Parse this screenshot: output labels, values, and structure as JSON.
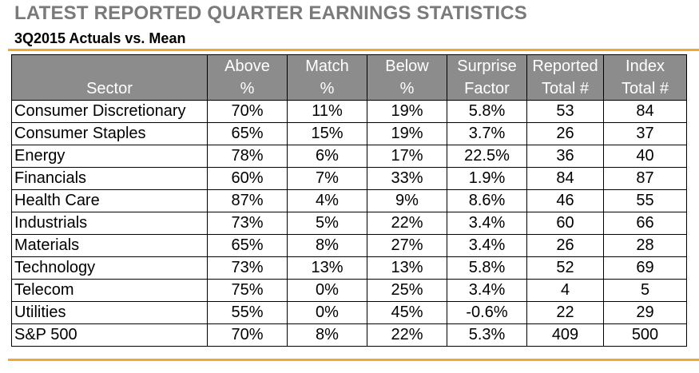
{
  "title": "LATEST REPORTED QUARTER EARNINGS STATISTICS",
  "subtitle": "3Q2015 Actuals vs. Mean",
  "colors": {
    "accent_rule": "#f0a830",
    "header_bg": "#8c8c8c",
    "title": "#7a7a7a"
  },
  "headers": [
    {
      "line1": "",
      "line2": "Sector"
    },
    {
      "line1": "Above",
      "line2": "%"
    },
    {
      "line1": "Match",
      "line2": "%"
    },
    {
      "line1": "Below",
      "line2": "%"
    },
    {
      "line1": "Surprise",
      "line2": "Factor"
    },
    {
      "line1": "Reported",
      "line2": "Total #"
    },
    {
      "line1": "Index",
      "line2": "Total #"
    }
  ],
  "rows": [
    [
      "Consumer Discretionary",
      "70%",
      "11%",
      "19%",
      "5.8%",
      "53",
      "84"
    ],
    [
      "Consumer Staples",
      "65%",
      "15%",
      "19%",
      "3.7%",
      "26",
      "37"
    ],
    [
      "Energy",
      "78%",
      "6%",
      "17%",
      "22.5%",
      "36",
      "40"
    ],
    [
      "Financials",
      "60%",
      "7%",
      "33%",
      "1.9%",
      "84",
      "87"
    ],
    [
      "Health Care",
      "87%",
      "4%",
      "9%",
      "8.6%",
      "46",
      "55"
    ],
    [
      "Industrials",
      "73%",
      "5%",
      "22%",
      "3.4%",
      "60",
      "66"
    ],
    [
      "Materials",
      "65%",
      "8%",
      "27%",
      "3.4%",
      "26",
      "28"
    ],
    [
      "Technology",
      "73%",
      "13%",
      "13%",
      "5.8%",
      "52",
      "69"
    ],
    [
      "Telecom",
      "75%",
      "0%",
      "25%",
      "3.4%",
      "4",
      "5"
    ],
    [
      "Utilities",
      "55%",
      "0%",
      "45%",
      "-0.6%",
      "22",
      "29"
    ],
    [
      "S&P 500",
      "70%",
      "8%",
      "22%",
      "5.3%",
      "409",
      "500"
    ]
  ]
}
